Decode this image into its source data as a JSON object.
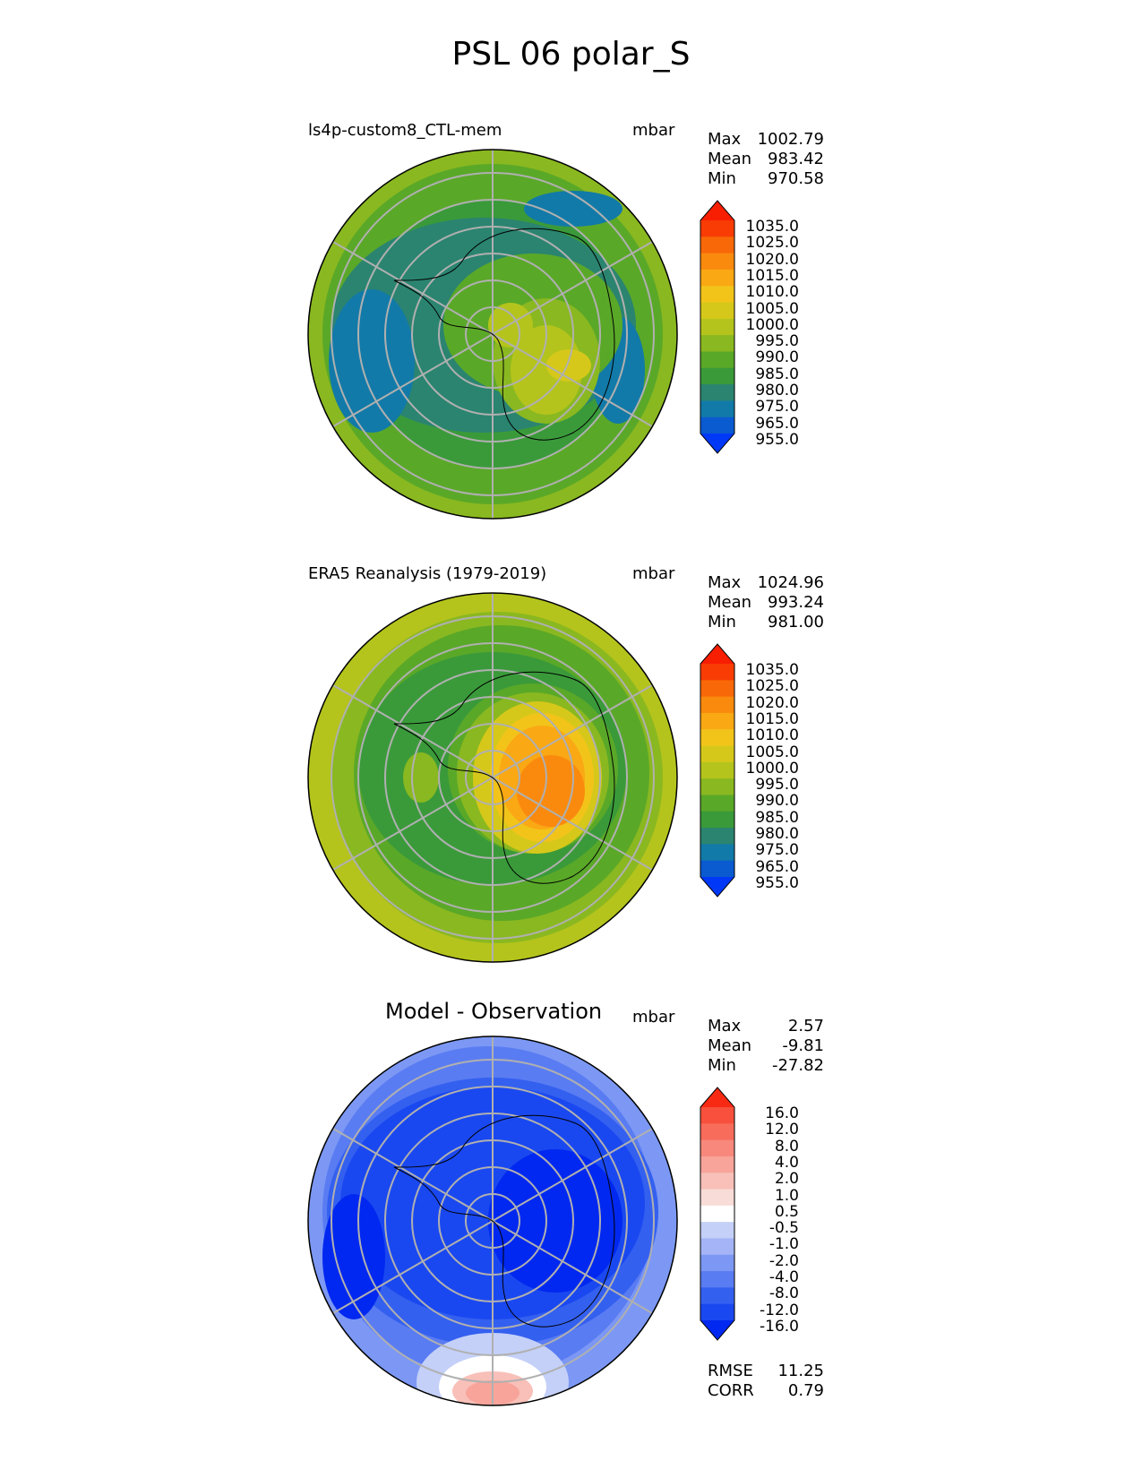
{
  "title": "PSL 06 polar_S",
  "panels": [
    {
      "label": "ls4p-custom8_CTL-mem",
      "unit": "mbar",
      "stats": [
        {
          "name": "Max",
          "value": "1002.79"
        },
        {
          "name": "Mean",
          "value": "983.42"
        },
        {
          "name": "Min",
          "value": "970.58"
        }
      ],
      "colorbar_labels": [
        "1035.0",
        "1025.0",
        "1020.0",
        "1015.0",
        "1010.0",
        "1005.0",
        "1000.0",
        "995.0",
        "990.0",
        "985.0",
        "980.0",
        "975.0",
        "965.0",
        "955.0"
      ]
    },
    {
      "label": "ERA5 Reanalysis (1979-2019)",
      "unit": "mbar",
      "stats": [
        {
          "name": "Max",
          "value": "1024.96"
        },
        {
          "name": "Mean",
          "value": "993.24"
        },
        {
          "name": "Min",
          "value": "981.00"
        }
      ],
      "colorbar_labels": [
        "1035.0",
        "1025.0",
        "1020.0",
        "1015.0",
        "1010.0",
        "1005.0",
        "1000.0",
        "995.0",
        "990.0",
        "985.0",
        "980.0",
        "975.0",
        "965.0",
        "955.0"
      ]
    },
    {
      "label": "Model - Observation",
      "unit": "mbar",
      "stats": [
        {
          "name": "Max",
          "value": "2.57"
        },
        {
          "name": "Mean",
          "value": "-9.81"
        },
        {
          "name": "Min",
          "value": "-27.82"
        }
      ],
      "colorbar_labels": [
        "16.0",
        "12.0",
        "8.0",
        "4.0",
        "2.0",
        "1.0",
        "0.5",
        "-0.5",
        "-1.0",
        "-2.0",
        "-4.0",
        "-8.0",
        "-12.0",
        "-16.0"
      ]
    }
  ],
  "metrics": [
    {
      "name": "RMSE",
      "value": "11.25"
    },
    {
      "name": "CORR",
      "value": "0.79"
    }
  ],
  "colors": {
    "psl": [
      "#0038f8",
      "#0a5ad0",
      "#127aa8",
      "#2a8470",
      "#3a9a3a",
      "#5aa828",
      "#8ab820",
      "#b4c41c",
      "#d6c81a",
      "#f2c41a",
      "#faa814",
      "#fa8a0e",
      "#f86808",
      "#f83c04",
      "#f81e02"
    ],
    "diff": [
      "#0028f0",
      "#1a48f0",
      "#3460f0",
      "#5a7cf2",
      "#7c98f4",
      "#a4b4f6",
      "#c4d0f8",
      "#ffffff",
      "#f8dcd8",
      "#f8c0b8",
      "#f8a49a",
      "#f8887c",
      "#f86c5c",
      "#f8503c",
      "#f82a14"
    ]
  }
}
